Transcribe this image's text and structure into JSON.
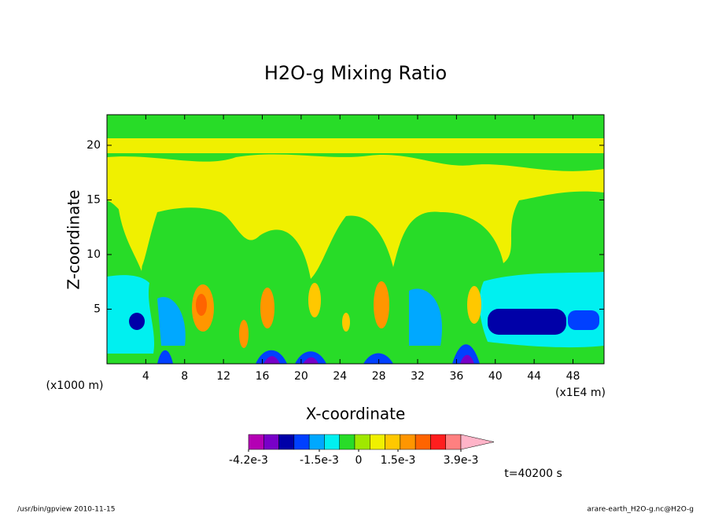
{
  "chart_data": {
    "type": "contour",
    "title": "H2O-g Mixing Ratio",
    "xlabel": "X-coordinate",
    "ylabel": "Z-coordinate",
    "x_unit": "(x1000 m)",
    "x_unit_right": "(x1E4 m)",
    "xlim": [
      0,
      51.2
    ],
    "xticks": [
      4,
      8,
      12,
      16,
      20,
      24,
      28,
      32,
      36,
      40,
      44,
      48
    ],
    "ylim": [
      0,
      22.8
    ],
    "yticks": [
      5,
      10,
      15,
      20
    ],
    "colorbar": {
      "clim": [
        -0.0042,
        0.0039
      ],
      "colors": [
        "#b400b4",
        "#7800c8",
        "#0000a8",
        "#0040ff",
        "#00a8ff",
        "#00f0f0",
        "#28dc28",
        "#a0e800",
        "#f0f000",
        "#ffc800",
        "#ff9600",
        "#ff6400",
        "#ff1e1e",
        "#ff8080"
      ],
      "extend_color": "#ffb4c8",
      "ticks": [
        {
          "value": -0.0042,
          "label": "-4.2e-3"
        },
        {
          "value": -0.0015,
          "label": "-1.5e-3"
        },
        0,
        {
          "value": 0.0015,
          "label": "1.5e-3"
        },
        {
          "value": 0.0039,
          "label": "3.9e-3"
        }
      ]
    },
    "time_label": "t=40200 s",
    "footer_left": "/usr/bin/gpview  2010-11-15",
    "footer_right": "arare-earth_H2O-g.nc@H2O-g"
  }
}
